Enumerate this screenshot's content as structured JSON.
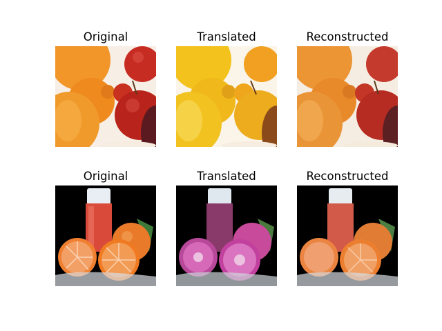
{
  "rows": [
    {
      "panels": [
        {
          "title": "Original",
          "image": "oranges-and-apples-original"
        },
        {
          "title": "Translated",
          "image": "oranges-and-apples-translated"
        },
        {
          "title": "Reconstructed",
          "image": "oranges-and-apples-reconstructed"
        }
      ]
    },
    {
      "panels": [
        {
          "title": "Original",
          "image": "juice-and-orange-slices-original"
        },
        {
          "title": "Translated",
          "image": "juice-and-orange-slices-translated"
        },
        {
          "title": "Reconstructed",
          "image": "juice-and-orange-slices-reconstructed"
        }
      ]
    }
  ]
}
